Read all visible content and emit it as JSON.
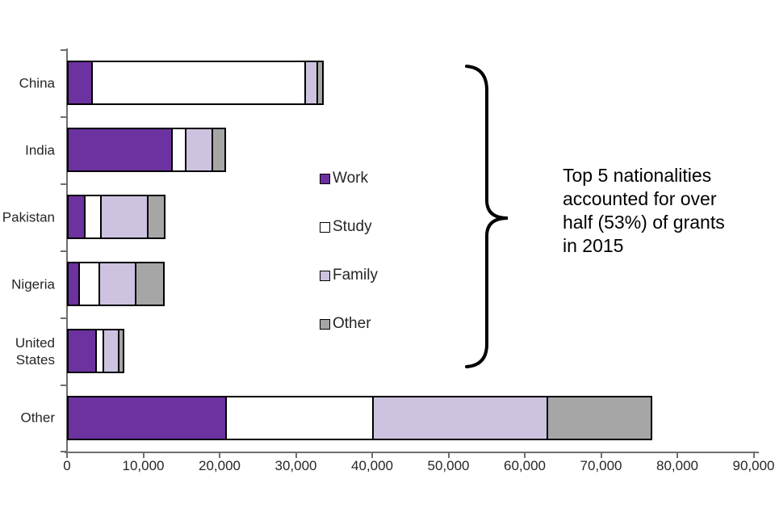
{
  "annotation": {
    "text": "Top 5 nationalities\naccounted for over\nhalf (53%) of grants\nin 2015"
  },
  "legend": {
    "items": [
      {
        "label": "Work",
        "color": "#6C32A0"
      },
      {
        "label": "Study",
        "color": "#FFFFFF"
      },
      {
        "label": "Family",
        "color": "#CDC3E0"
      },
      {
        "label": "Other",
        "color": "#A6A6A6"
      }
    ]
  },
  "chart_data": {
    "type": "bar",
    "orientation": "horizontal",
    "stacked": true,
    "title": "",
    "xlabel": "",
    "ylabel": "",
    "categories": [
      "China",
      "India",
      "Pakistan",
      "Nigeria",
      "United States",
      "Other"
    ],
    "series": [
      {
        "name": "Work",
        "color": "#6C32A0",
        "values": [
          3400,
          13900,
          2400,
          1700,
          3900,
          20900
        ]
      },
      {
        "name": "Study",
        "color": "#FFFFFF",
        "values": [
          27900,
          1800,
          2200,
          2600,
          1000,
          19300
        ]
      },
      {
        "name": "Family",
        "color": "#CDC3E0",
        "values": [
          1600,
          3500,
          6100,
          4800,
          2000,
          22900
        ]
      },
      {
        "name": "Other",
        "color": "#A6A6A6",
        "values": [
          700,
          1600,
          2200,
          3700,
          600,
          13600
        ]
      }
    ],
    "category_totals": [
      33600,
      20800,
      12900,
      12800,
      7500,
      76700
    ],
    "xlim": [
      0,
      90000
    ],
    "x_tick_step": 10000,
    "x_tick_labels": [
      "0",
      "10,000",
      "20,000",
      "30,000",
      "40,000",
      "50,000",
      "60,000",
      "70,000",
      "80,000",
      "90,000"
    ],
    "grid": false,
    "legend_position": "middle of plot area, vertical list",
    "bar_border_color": "#000000",
    "axis_color": "#6e6e6e"
  }
}
